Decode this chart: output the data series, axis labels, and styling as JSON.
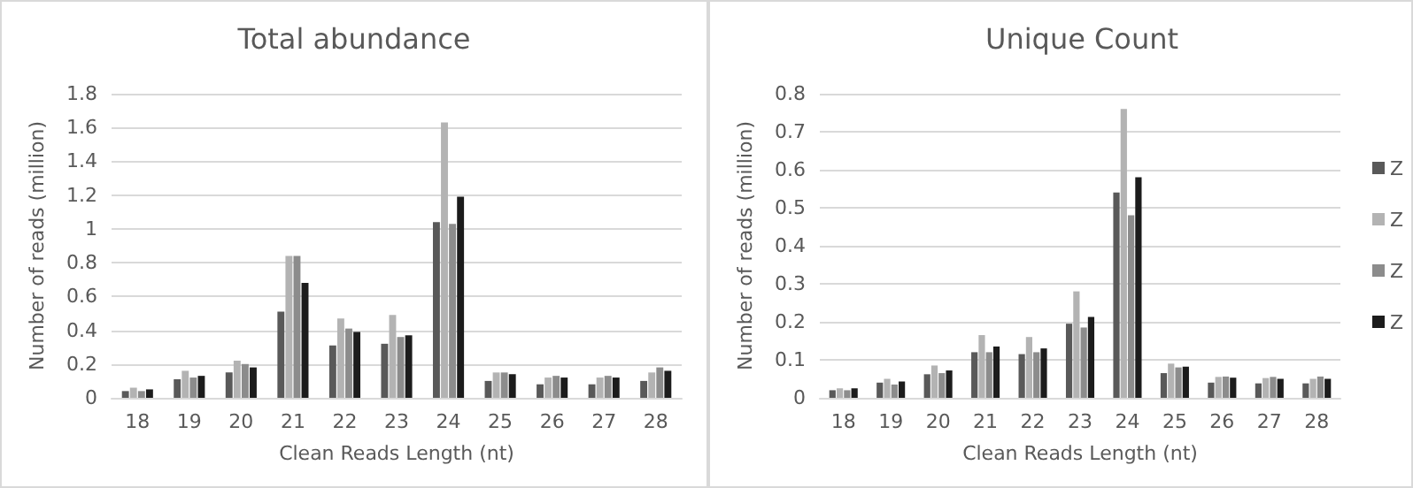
{
  "chart_data": [
    {
      "type": "bar",
      "title": "Total abundance",
      "xlabel": "Clean Reads Length (nt)",
      "ylabel": "Number of reads (million)",
      "categories": [
        "18",
        "19",
        "20",
        "21",
        "22",
        "23",
        "24",
        "25",
        "26",
        "27",
        "28"
      ],
      "series": [
        {
          "color": "#595959",
          "values": [
            0.04,
            0.11,
            0.15,
            0.51,
            0.31,
            0.32,
            1.04,
            0.1,
            0.08,
            0.08,
            0.1
          ]
        },
        {
          "color": "#b3b3b3",
          "values": [
            0.06,
            0.16,
            0.22,
            0.84,
            0.47,
            0.49,
            1.63,
            0.15,
            0.12,
            0.12,
            0.15
          ]
        },
        {
          "color": "#8c8c8c",
          "values": [
            0.04,
            0.12,
            0.2,
            0.84,
            0.41,
            0.36,
            1.03,
            0.15,
            0.13,
            0.13,
            0.18
          ]
        },
        {
          "color": "#1c1c1c",
          "values": [
            0.05,
            0.13,
            0.18,
            0.68,
            0.39,
            0.37,
            1.19,
            0.14,
            0.12,
            0.12,
            0.16
          ]
        }
      ],
      "ylim": [
        0,
        1.8
      ],
      "yticks": [
        0,
        0.2,
        0.4,
        0.6,
        0.8,
        {
          "value": 1,
          "label": "1"
        },
        1.2,
        1.4,
        1.6,
        1.8
      ],
      "grid": "y",
      "legend": false
    },
    {
      "type": "bar",
      "title": "Unique Count",
      "xlabel": "Clean Reads Length (nt)",
      "ylabel": "Number of reads (million)",
      "categories": [
        "18",
        "19",
        "20",
        "21",
        "22",
        "23",
        "24",
        "25",
        "26",
        "27",
        "28"
      ],
      "series": [
        {
          "name": "Z",
          "color": "#595959",
          "values": [
            0.02,
            0.04,
            0.062,
            0.12,
            0.115,
            0.195,
            0.54,
            0.065,
            0.04,
            0.038,
            0.038
          ]
        },
        {
          "name": "Z",
          "color": "#b3b3b3",
          "values": [
            0.025,
            0.05,
            0.085,
            0.165,
            0.16,
            0.28,
            0.76,
            0.09,
            0.055,
            0.052,
            0.05
          ]
        },
        {
          "name": "Z",
          "color": "#8c8c8c",
          "values": [
            0.02,
            0.035,
            0.065,
            0.12,
            0.12,
            0.185,
            0.48,
            0.08,
            0.056,
            0.055,
            0.056
          ]
        },
        {
          "name": "Z",
          "color": "#1c1c1c",
          "values": [
            0.025,
            0.043,
            0.072,
            0.135,
            0.13,
            0.213,
            0.58,
            0.082,
            0.053,
            0.05,
            0.05
          ]
        }
      ],
      "ylim": [
        0,
        0.8
      ],
      "yticks": [
        0,
        0.1,
        0.2,
        0.3,
        0.4,
        0.5,
        0.6,
        0.7,
        0.8
      ],
      "grid": "y",
      "legend": "right"
    }
  ]
}
